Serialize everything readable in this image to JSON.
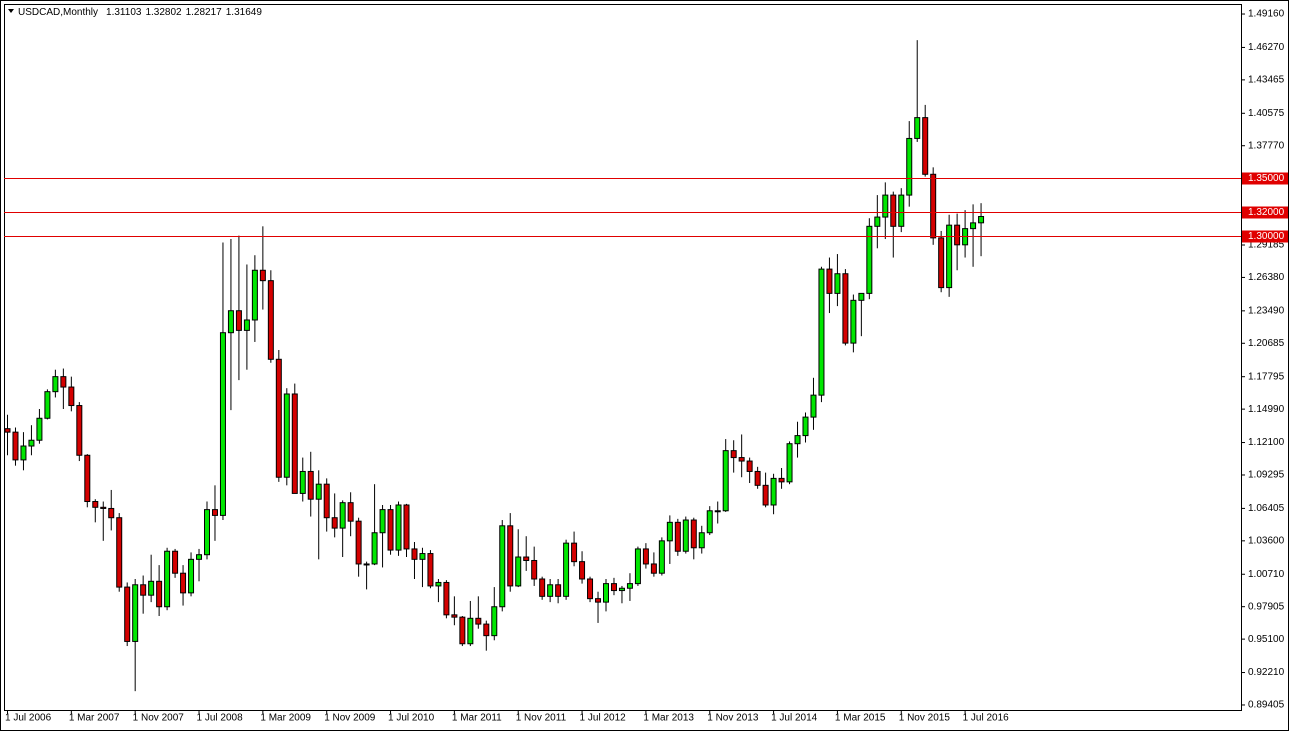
{
  "chart_data": {
    "type": "candlestick",
    "title": "USDCAD,Monthly",
    "categories": [
      "1 Jul 2006",
      null,
      null,
      null,
      null,
      null,
      null,
      null,
      "1 Mar 2007",
      null,
      null,
      null,
      null,
      null,
      null,
      null,
      "1 Nov 2007",
      null,
      null,
      null,
      null,
      null,
      null,
      null,
      "1 Jul 2008",
      null,
      null,
      null,
      null,
      null,
      null,
      null,
      "1 Mar 2009",
      null,
      null,
      null,
      null,
      null,
      null,
      null,
      "1 Nov 2009",
      null,
      null,
      null,
      null,
      null,
      null,
      null,
      "1 Jul 2010",
      null,
      null,
      null,
      null,
      null,
      null,
      null,
      "1 Mar 2011",
      null,
      null,
      null,
      null,
      null,
      null,
      null,
      "1 Nov 2011",
      null,
      null,
      null,
      null,
      null,
      null,
      null,
      "1 Jul 2012",
      null,
      null,
      null,
      null,
      null,
      null,
      null,
      "1 Mar 2013",
      null,
      null,
      null,
      null,
      null,
      null,
      null,
      "1 Nov 2013",
      null,
      null,
      null,
      null,
      null,
      null,
      null,
      "1 Jul 2014",
      null,
      null,
      null,
      null,
      null,
      null,
      null,
      "1 Mar 2015",
      null,
      null,
      null,
      null,
      null,
      null,
      null,
      "1 Nov 2015",
      null,
      null,
      null,
      null,
      null,
      null,
      null,
      "1 Jul 2016",
      null,
      null
    ],
    "open": [
      1.133,
      1.13,
      1.106,
      1.118,
      1.123,
      1.142,
      1.165,
      1.178,
      1.169,
      1.153,
      1.11,
      1.07,
      1.065,
      1.064,
      1.056,
      0.996,
      0.949,
      0.998,
      0.989,
      1.001,
      0.979,
      1.027,
      1.008,
      0.991,
      1.02,
      1.024,
      1.063,
      1.058,
      1.216,
      1.235,
      1.218,
      1.227,
      1.27,
      1.261,
      1.193,
      1.091,
      1.163,
      1.077,
      1.096,
      1.072,
      1.085,
      1.056,
      1.047,
      1.069,
      1.053,
      1.016,
      1.016,
      1.043,
      1.063,
      1.028,
      1.067,
      1.029,
      1.02,
      1.025,
      0.997,
      1.0,
      0.972,
      0.97,
      0.947,
      0.969,
      0.964,
      0.954,
      0.979,
      1.049,
      0.997,
      1.022,
      1.019,
      1.003,
      0.988,
      0.998,
      0.988,
      1.034,
      1.018,
      1.003,
      0.986,
      0.983,
      0.999,
      0.993,
      0.995,
      0.999,
      1.029,
      1.016,
      1.008,
      1.036,
      1.052,
      1.027,
      1.054,
      1.03,
      1.043,
      1.062,
      1.062,
      1.114,
      1.108,
      1.105,
      1.096,
      1.084,
      1.067,
      1.09,
      1.087,
      1.12,
      1.127,
      1.143,
      1.162,
      1.271,
      1.25,
      1.267,
      1.207,
      1.244,
      1.25,
      1.308,
      1.316,
      1.335,
      1.308,
      1.335,
      1.384,
      1.402,
      1.353,
      1.298,
      1.255,
      1.309,
      1.292,
      1.306,
      1.31103
    ],
    "high": [
      1.145,
      1.134,
      1.13,
      1.136,
      1.15,
      1.167,
      1.184,
      1.185,
      1.178,
      1.156,
      1.111,
      1.072,
      1.07,
      1.08,
      1.06,
      1.0,
      1.003,
      1.006,
      1.024,
      1.015,
      1.03,
      1.029,
      1.015,
      1.026,
      1.029,
      1.07,
      1.084,
      1.294,
      1.297,
      1.3,
      1.275,
      1.283,
      1.308,
      1.27,
      1.201,
      1.168,
      1.172,
      1.108,
      1.113,
      1.097,
      1.09,
      1.077,
      1.071,
      1.078,
      1.056,
      1.018,
      1.085,
      1.067,
      1.067,
      1.07,
      1.068,
      1.035,
      1.03,
      1.028,
      1.003,
      1.002,
      0.988,
      0.971,
      0.984,
      0.988,
      0.967,
      0.996,
      1.054,
      1.06,
      1.046,
      1.04,
      1.031,
      1.005,
      1.003,
      1.003,
      1.037,
      1.044,
      1.027,
      1.005,
      0.992,
      1.003,
      1.004,
      0.997,
      1.008,
      1.031,
      1.034,
      1.026,
      1.039,
      1.058,
      1.055,
      1.057,
      1.056,
      1.049,
      1.066,
      1.07,
      1.124,
      1.123,
      1.128,
      1.108,
      1.1,
      1.095,
      1.094,
      1.099,
      1.122,
      1.139,
      1.147,
      1.177,
      1.273,
      1.281,
      1.284,
      1.271,
      1.249,
      1.25,
      1.315,
      1.335,
      1.346,
      1.338,
      1.341,
      1.399,
      1.469,
      1.413,
      1.359,
      1.304,
      1.318,
      1.319,
      1.322,
      1.327,
      1.32802
    ],
    "low": [
      1.11,
      1.101,
      1.097,
      1.11,
      1.12,
      1.141,
      1.16,
      1.15,
      1.148,
      1.105,
      1.065,
      1.052,
      1.036,
      1.045,
      0.992,
      0.945,
      0.906,
      0.973,
      0.983,
      0.971,
      0.976,
      1.004,
      0.98,
      0.988,
      1.001,
      1.02,
      1.036,
      1.054,
      1.149,
      1.175,
      1.184,
      1.208,
      1.236,
      1.19,
      1.087,
      1.084,
      1.077,
      1.07,
      1.057,
      1.02,
      1.044,
      1.039,
      1.022,
      1.04,
      1.005,
      0.994,
      1.015,
      1.013,
      1.024,
      1.023,
      1.022,
      1.003,
      0.996,
      0.995,
      0.983,
      0.969,
      0.963,
      0.945,
      0.945,
      0.96,
      0.941,
      0.95,
      0.975,
      0.992,
      0.996,
      1.01,
      0.997,
      0.985,
      0.983,
      0.982,
      0.985,
      1.014,
      0.999,
      0.983,
      0.965,
      0.975,
      0.989,
      0.982,
      0.984,
      0.997,
      1.012,
      1.005,
      1.006,
      1.016,
      1.023,
      1.025,
      1.02,
      1.025,
      1.041,
      1.051,
      1.061,
      1.095,
      1.091,
      1.086,
      1.081,
      1.065,
      1.059,
      1.081,
      1.085,
      1.108,
      1.121,
      1.132,
      1.156,
      1.233,
      1.239,
      1.205,
      1.199,
      1.213,
      1.245,
      1.289,
      1.297,
      1.281,
      1.303,
      1.325,
      1.381,
      1.351,
      1.292,
      1.251,
      1.247,
      1.27,
      1.281,
      1.273,
      1.28217
    ],
    "close": [
      1.13,
      1.106,
      1.118,
      1.123,
      1.142,
      1.165,
      1.178,
      1.169,
      1.153,
      1.11,
      1.07,
      1.065,
      1.064,
      1.056,
      0.996,
      0.949,
      0.998,
      0.989,
      1.001,
      0.979,
      1.027,
      1.008,
      0.991,
      1.02,
      1.024,
      1.063,
      1.058,
      1.216,
      1.235,
      1.218,
      1.227,
      1.27,
      1.261,
      1.193,
      1.091,
      1.163,
      1.077,
      1.096,
      1.072,
      1.085,
      1.056,
      1.047,
      1.069,
      1.053,
      1.016,
      1.016,
      1.043,
      1.063,
      1.028,
      1.067,
      1.029,
      1.02,
      1.025,
      0.997,
      1.0,
      0.972,
      0.97,
      0.947,
      0.969,
      0.964,
      0.954,
      0.979,
      1.049,
      0.997,
      1.022,
      1.019,
      1.003,
      0.988,
      0.998,
      0.988,
      1.034,
      1.018,
      1.003,
      0.986,
      0.983,
      0.999,
      0.993,
      0.995,
      0.999,
      1.029,
      1.016,
      1.008,
      1.036,
      1.052,
      1.027,
      1.054,
      1.03,
      1.043,
      1.062,
      1.062,
      1.114,
      1.108,
      1.105,
      1.096,
      1.084,
      1.067,
      1.09,
      1.087,
      1.12,
      1.127,
      1.143,
      1.162,
      1.271,
      1.25,
      1.267,
      1.207,
      1.244,
      1.25,
      1.308,
      1.316,
      1.335,
      1.308,
      1.335,
      1.384,
      1.402,
      1.353,
      1.298,
      1.255,
      1.309,
      1.292,
      1.306,
      1.311,
      1.31649
    ],
    "up_color": "#00e600",
    "down_color": "#d40000",
    "ylim": [
      0.8897,
      1.4994
    ],
    "yticks": [
      {
        "value": 1.4916,
        "label": "1.49160"
      },
      {
        "value": 1.4627,
        "label": "1.46270"
      },
      1.43465,
      1.40575,
      {
        "value": 1.3777,
        "label": "1.37770"
      },
      {
        "value": 1.29185,
        "label": "1.29185"
      },
      {
        "value": 1.2638,
        "label": "1.26380"
      },
      {
        "value": 1.2349,
        "label": "1.23490"
      },
      1.20685,
      1.17795,
      {
        "value": 1.1499,
        "label": "1.14990"
      },
      {
        "value": 1.121,
        "label": "1.12100"
      },
      1.09295,
      1.06405,
      {
        "value": 1.036,
        "label": "1.03600"
      },
      {
        "value": 1.0071,
        "label": "1.00710"
      },
      0.97905,
      {
        "value": 0.951,
        "label": "0.95100"
      },
      {
        "value": 0.9221,
        "label": "0.92210"
      },
      0.89405
    ],
    "hlines": [
      {
        "value": 1.35,
        "label": "1.35000"
      },
      {
        "value": 1.32,
        "label": "1.32000"
      },
      {
        "value": 1.3,
        "label": "1.30000"
      }
    ],
    "hline_color": "#e00000",
    "grid": false
  }
}
